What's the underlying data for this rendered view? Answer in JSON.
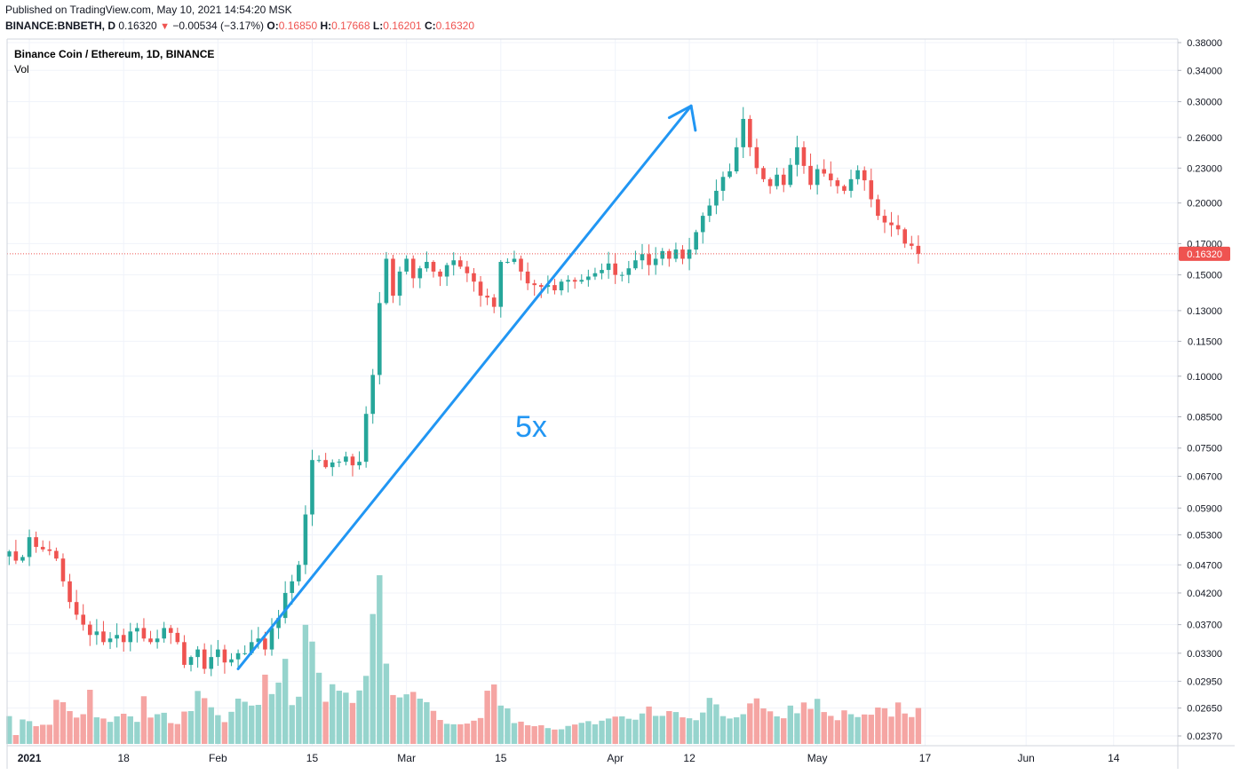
{
  "header": {
    "published": "Published on TradingView.com, May 10, 2021 14:54:20 MSK",
    "symbol": "BINANCE:BNBETH, D",
    "last": "0.16320",
    "change": "−0.00534 (−3.17%)",
    "o_label": "O:",
    "o_value": "0.16850",
    "h_label": "H:",
    "h_value": "0.17668",
    "l_label": "L:",
    "l_value": "0.16201",
    "c_label": "C:",
    "c_value": "0.16320"
  },
  "legend": {
    "title": "Binance Coin / Ethereum, 1D, BINANCE",
    "vol": "Vol"
  },
  "price_axis": {
    "ticks": [
      "0.38000",
      "0.34000",
      "0.30000",
      "0.26000",
      "0.23000",
      "0.20000",
      "0.17000",
      "0.15000",
      "0.13000",
      "0.11500",
      "0.10000",
      "0.08500",
      "0.07500",
      "0.06700",
      "0.05900",
      "0.05300",
      "0.04700",
      "0.04200",
      "0.03700",
      "0.03300",
      "0.02950",
      "0.02650",
      "0.02370"
    ],
    "last_price_label": "0.16320"
  },
  "time_axis": {
    "ticks": [
      "2021",
      "18",
      "Feb",
      "15",
      "Mar",
      "15",
      "Apr",
      "12",
      "May",
      "17",
      "Jun",
      "14"
    ]
  },
  "annotation": {
    "text": "5x"
  },
  "colors": {
    "up": "#26a69a",
    "down": "#ef5350",
    "up_vol": "#96d4cd",
    "down_vol": "#f5a5a3",
    "arrow": "#2196f3",
    "grid": "#f0f3fa",
    "axis_text": "#131722"
  },
  "chart_data": {
    "type": "candlestick",
    "title": "Binance Coin / Ethereum, 1D, BINANCE",
    "scale": "log",
    "ylim": [
      0.0225,
      0.39
    ],
    "x_start": "2021-01-01",
    "last_price": 0.1632,
    "annotation": {
      "text": "5x",
      "from": [
        "2021-02-04",
        0.031
      ],
      "to": [
        "2021-04-12",
        0.295
      ]
    },
    "closes": [
      0.0496,
      0.0478,
      0.0485,
      0.0525,
      0.0505,
      0.05,
      0.0497,
      0.0482,
      0.044,
      0.0405,
      0.0385,
      0.037,
      0.0355,
      0.036,
      0.0345,
      0.035,
      0.0355,
      0.0345,
      0.036,
      0.0365,
      0.035,
      0.0345,
      0.035,
      0.0365,
      0.0358,
      0.0345,
      0.0315,
      0.0325,
      0.0335,
      0.031,
      0.0325,
      0.0335,
      0.0318,
      0.0322,
      0.033,
      0.033,
      0.0345,
      0.035,
      0.0335,
      0.0365,
      0.038,
      0.042,
      0.044,
      0.047,
      0.0575,
      0.0715,
      0.0715,
      0.0695,
      0.0708,
      0.071,
      0.0725,
      0.07,
      0.071,
      0.086,
      0.1005,
      0.134,
      0.16,
      0.138,
      0.152,
      0.16,
      0.148,
      0.154,
      0.158,
      0.152,
      0.149,
      0.156,
      0.159,
      0.155,
      0.151,
      0.146,
      0.138,
      0.137,
      0.132,
      0.158,
      0.158,
      0.16,
      0.152,
      0.145,
      0.144,
      0.143,
      0.144,
      0.141,
      0.146,
      0.147,
      0.146,
      0.147,
      0.149,
      0.151,
      0.153,
      0.157,
      0.15,
      0.15,
      0.154,
      0.159,
      0.163,
      0.156,
      0.16,
      0.165,
      0.16,
      0.166,
      0.16,
      0.166,
      0.178,
      0.19,
      0.198,
      0.21,
      0.222,
      0.227,
      0.25,
      0.28,
      0.25,
      0.23,
      0.22,
      0.214,
      0.224,
      0.215,
      0.233,
      0.25,
      0.232,
      0.215,
      0.229,
      0.225,
      0.219,
      0.214,
      0.21,
      0.22,
      0.228,
      0.219,
      0.203,
      0.19,
      0.185,
      0.183,
      0.18,
      0.17,
      0.1685,
      0.1632
    ],
    "volumes": [
      11.6,
      3.7,
      10.2,
      9.5,
      7.4,
      8.0,
      8.0,
      18.4,
      17.4,
      13.7,
      11.0,
      12.4,
      22.6,
      11.1,
      10.6,
      9.2,
      11.5,
      12.6,
      11.5,
      9.2,
      19.9,
      11.0,
      12.4,
      13.0,
      8.7,
      8.3,
      13.5,
      13.7,
      22.1,
      19.1,
      15.3,
      12.0,
      9.1,
      13.4,
      18.9,
      17.6,
      16.0,
      16.3,
      28.9,
      20.8,
      25.6,
      35.5,
      16.2,
      19.7,
      49.7,
      42.7,
      29.7,
      17.6,
      24.9,
      22.2,
      21.4,
      17.1,
      22.3,
      28.4,
      54.2,
      70.4,
      33.5,
      20.4,
      19.4,
      20.7,
      21.7,
      18.9,
      17.4,
      13.8,
      10.0,
      8.4,
      8.2,
      8.2,
      8.5,
      9.7,
      10.8,
      22.2,
      24.8,
      16.0,
      14.8,
      8.7,
      9.3,
      7.8,
      7.4,
      7.8,
      6.6,
      6.0,
      6.1,
      7.5,
      8.1,
      8.8,
      9.5,
      8.2,
      9.7,
      10.6,
      11.4,
      11.5,
      10.5,
      10.1,
      12.7,
      15.6,
      11.7,
      11.7,
      13.7,
      13.3,
      11.1,
      10.7,
      9.9,
      13.1,
      19.2,
      16.5,
      11.6,
      10.6,
      11.1,
      12.4,
      16.9,
      19.0,
      14.8,
      13.6,
      11.5,
      10.7,
      16.0,
      12.8,
      17.3,
      14.6,
      18.8,
      13.3,
      11.7,
      9.9,
      14.0,
      12.4,
      11.2,
      12.3,
      12.2,
      15.2,
      14.9,
      11.4,
      17.3,
      12.7,
      11.2,
      15.0
    ]
  }
}
